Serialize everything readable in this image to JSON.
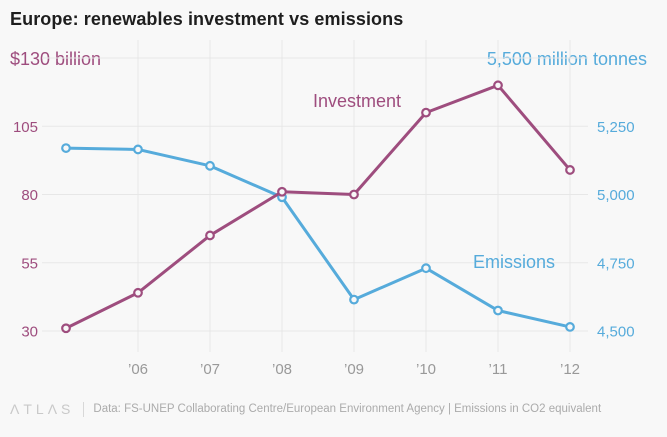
{
  "title": "Europe: renewables investment vs emissions",
  "chart_data": {
    "type": "line",
    "title": "Europe: renewables investment vs emissions",
    "x": [
      2005,
      2006,
      2007,
      2008,
      2009,
      2010,
      2011,
      2012
    ],
    "x_tick_years": [
      2006,
      2007,
      2008,
      2009,
      2010,
      2011,
      2012
    ],
    "x_tick_labels": [
      "’06",
      "’07",
      "’08",
      "’09",
      "’10",
      "’11",
      "’12"
    ],
    "left_axis": {
      "header": "$130 billion",
      "unit": "US$ billion",
      "color": "#9e4d7e",
      "gridline_values": [
        130,
        105,
        80,
        55,
        30
      ],
      "tick_labels": [
        "105",
        "80",
        "55",
        "30"
      ],
      "range": [
        30,
        130
      ]
    },
    "right_axis": {
      "header": "5,500 million tonnes",
      "unit": "million tonnes CO2 equivalent",
      "color": "#56abdb",
      "gridline_values": [
        5500,
        5250,
        5000,
        4750,
        4500
      ],
      "tick_labels": [
        "5,250",
        "5,000",
        "4,750",
        "4,500"
      ],
      "range": [
        4500,
        5500
      ]
    },
    "series": [
      {
        "name": "Emissions",
        "axis": "right",
        "color": "#56abdb",
        "values": [
          5170,
          5165,
          5105,
          4990,
          4615,
          4730,
          4575,
          4515
        ]
      },
      {
        "name": "Investment",
        "axis": "left",
        "color": "#9e4d7e",
        "values": [
          31,
          44,
          65,
          81,
          80,
          110,
          120,
          89
        ]
      }
    ],
    "grid": true,
    "legend_position": "inline-labels",
    "colors": {
      "background": "#f8f8f8",
      "gridline": "#e7e7e7",
      "x_tick_text": "#999999",
      "title_text": "#1e1e1e"
    }
  },
  "series_labels": {
    "investment": "Investment",
    "emissions": "Emissions"
  },
  "footer": {
    "logo": "ΛTLΛS",
    "source": "Data: FS-UNEP Collaborating Centre/European Environment Agency | Emissions in CO2 equivalent"
  }
}
